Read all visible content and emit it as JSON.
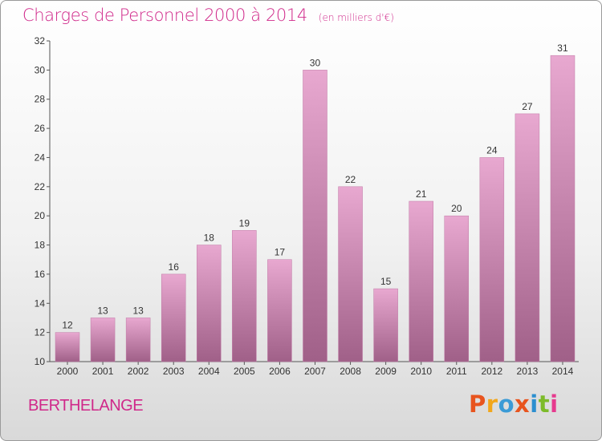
{
  "header": {
    "title": "Charges de Personnel 2000 à 2014",
    "subtitle": "(en milliers d'€)"
  },
  "footer": {
    "commune": "BERTHELANGE",
    "logo_text": "Proxiti",
    "logo_colors": [
      "#e8541e",
      "#f2a71b",
      "#3b9bd6",
      "#e8541e",
      "#2c8fcf",
      "#7dbb2a",
      "#e63a8e"
    ]
  },
  "colors": {
    "title": "#d0288a",
    "bar_top": "#e8a8d0",
    "bar_bottom": "#a06088"
  },
  "chart_data": {
    "type": "bar",
    "title": "Charges de Personnel 2000 à 2014",
    "subtitle": "(en milliers d'€)",
    "categories": [
      "2000",
      "2001",
      "2002",
      "2003",
      "2004",
      "2005",
      "2006",
      "2007",
      "2008",
      "2009",
      "2010",
      "2011",
      "2012",
      "2013",
      "2014"
    ],
    "values": [
      12,
      13,
      13,
      16,
      18,
      19,
      17,
      30,
      22,
      15,
      21,
      20,
      24,
      27,
      31
    ],
    "ylim": [
      10,
      32
    ],
    "yticks": [
      10,
      12,
      14,
      16,
      18,
      20,
      22,
      24,
      26,
      28,
      30,
      32
    ],
    "grid": false,
    "data_labels": true
  }
}
